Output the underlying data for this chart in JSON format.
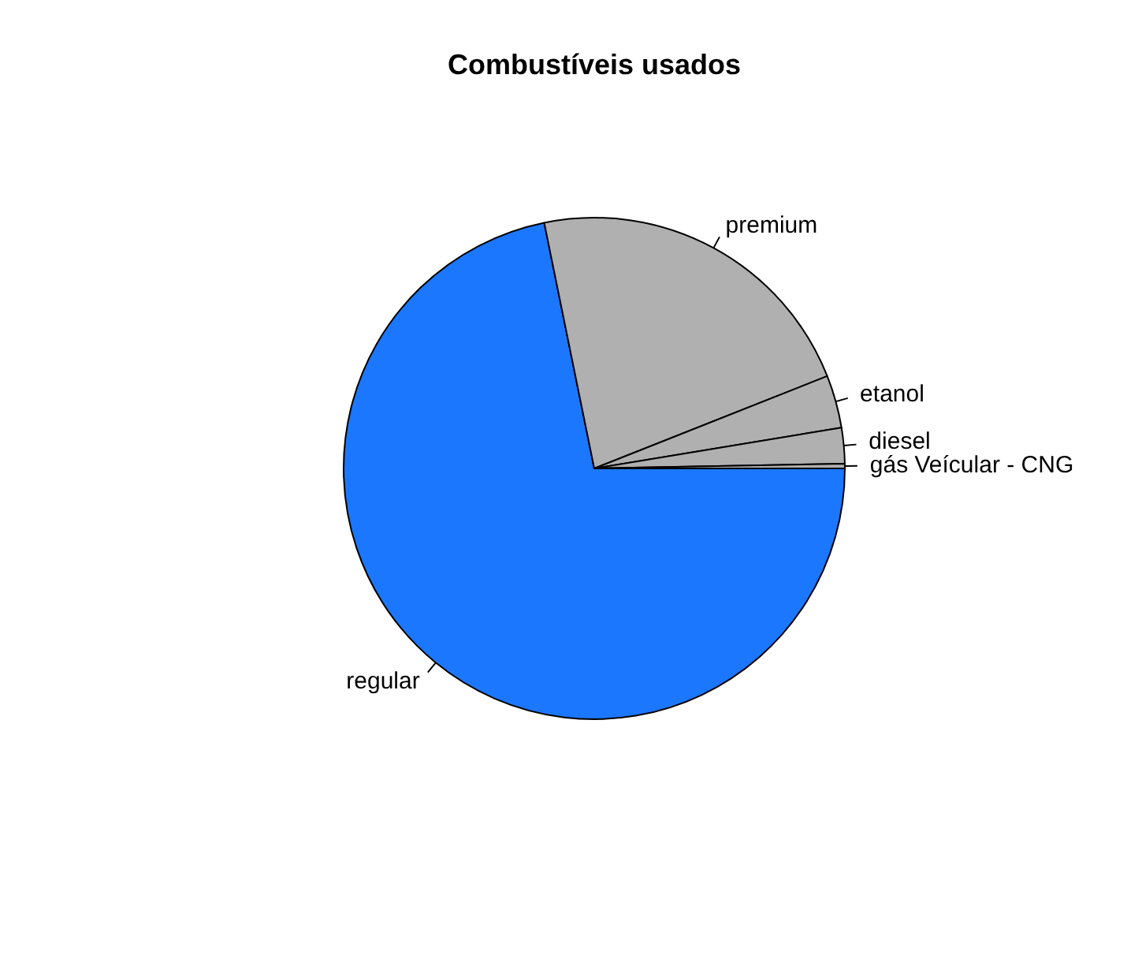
{
  "chart_data": {
    "type": "pie",
    "title": "Combustíveis usados",
    "categories": [
      "regular",
      "premium",
      "etanol",
      "diesel",
      "gás Veícular - CNG"
    ],
    "values": [
      71.8,
      22.2,
      3.4,
      2.3,
      0.3
    ],
    "colors": [
      "#1c77ff",
      "#b0b0b0",
      "#b0b0b0",
      "#b0b0b0",
      "#b0b0b0"
    ],
    "legend": false
  }
}
